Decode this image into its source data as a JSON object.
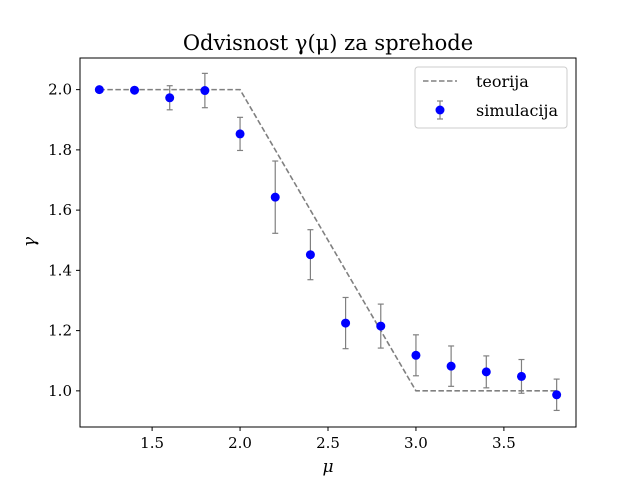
{
  "chart_data": {
    "type": "scatter",
    "title": "Odvisnost γ(μ) za sprehode",
    "xlabel": "μ",
    "ylabel": "γ",
    "xlim": [
      1.09,
      3.91
    ],
    "ylim": [
      0.88,
      2.105
    ],
    "xticks": [
      1.5,
      2.0,
      2.5,
      3.0,
      3.5
    ],
    "xtick_labels": [
      "1.5",
      "2.0",
      "2.5",
      "3.0",
      "3.5"
    ],
    "yticks": [
      1.0,
      1.2,
      1.4,
      1.6,
      1.8,
      2.0
    ],
    "ytick_labels": [
      "1.0",
      "1.2",
      "1.4",
      "1.6",
      "1.8",
      "2.0"
    ],
    "legend_position": "top-right",
    "grid": false,
    "series": [
      {
        "name": "teorija",
        "kind": "line",
        "style": "dashed",
        "color": "#808080",
        "x": [
          1.2,
          2.0,
          3.0,
          3.8
        ],
        "y": [
          2.0,
          2.0,
          1.0,
          1.0
        ]
      },
      {
        "name": "simulacija",
        "kind": "scatter_errorbar",
        "color": "#0000ff",
        "errorbar_color": "#808080",
        "x": [
          1.2,
          1.4,
          1.6,
          1.8,
          2.0,
          2.2,
          2.4,
          2.6,
          2.8,
          3.0,
          3.2,
          3.4,
          3.6,
          3.8
        ],
        "y": [
          2.0,
          1.998,
          1.973,
          1.997,
          1.853,
          1.643,
          1.452,
          1.225,
          1.215,
          1.118,
          1.082,
          1.063,
          1.048,
          0.987
        ],
        "yerr": [
          0.0,
          0.0,
          0.04,
          0.057,
          0.055,
          0.12,
          0.083,
          0.085,
          0.073,
          0.068,
          0.067,
          0.053,
          0.056,
          0.052
        ]
      }
    ]
  }
}
